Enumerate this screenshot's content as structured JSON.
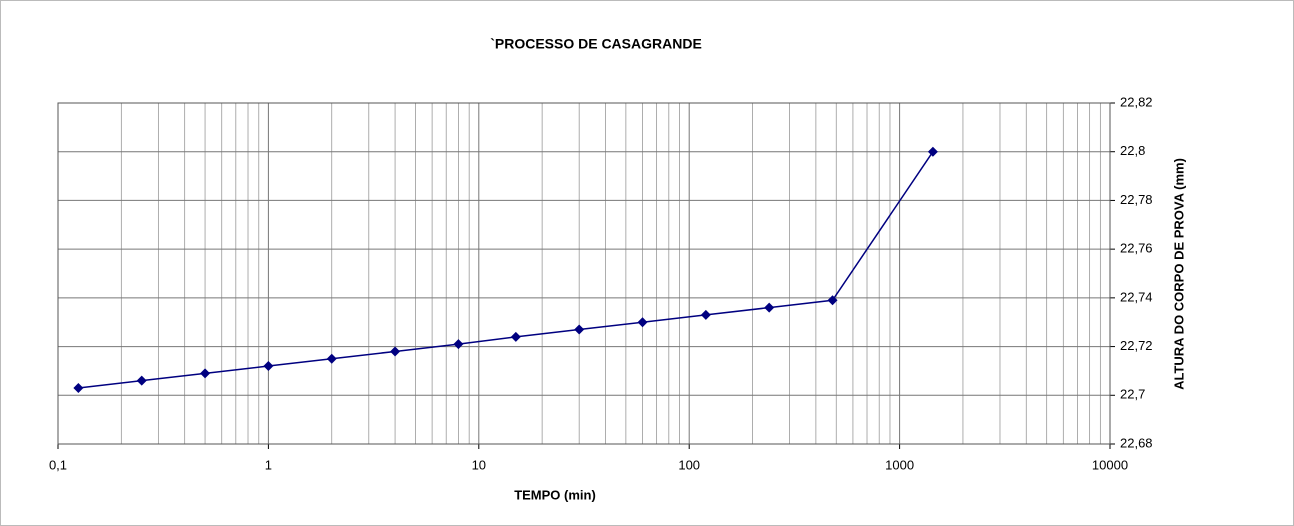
{
  "chart_data": {
    "type": "line",
    "title": "`PROCESSO DE CASAGRANDE",
    "x_label": "TEMPO (min)",
    "y_label": "ALTURA DO CORPO DE PROVA (mm)",
    "x": [
      0.125,
      0.25,
      0.5,
      1,
      2,
      4,
      8,
      15,
      30,
      60,
      120,
      240,
      480,
      1440
    ],
    "series": [
      {
        "name": "ALTURA DO CORPO DE PROVA (mm)",
        "color": "#000080",
        "values": [
          22.703,
          22.706,
          22.709,
          22.712,
          22.715,
          22.718,
          22.721,
          22.724,
          22.727,
          22.73,
          22.733,
          22.736,
          22.739,
          22.8
        ]
      }
    ],
    "xlim": [
      0.1,
      10000
    ],
    "xticks": [
      {
        "value": 0.1,
        "label": "0,1"
      },
      1,
      10,
      100,
      1000,
      10000
    ],
    "x_log": true,
    "ylim": [
      22.68,
      22.82
    ],
    "yticks": [
      {
        "value": 22.68,
        "label": "22,68"
      },
      {
        "value": 22.7,
        "label": "22,7"
      },
      {
        "value": 22.72,
        "label": "22,72"
      },
      {
        "value": 22.74,
        "label": "22,74"
      },
      {
        "value": 22.76,
        "label": "22,76"
      },
      {
        "value": 22.78,
        "label": "22,78"
      },
      {
        "value": 22.8,
        "label": "22,8"
      },
      {
        "value": 22.82,
        "label": "22,82"
      }
    ],
    "y_axis_side": "right",
    "grid": true,
    "minor_grid": true
  }
}
